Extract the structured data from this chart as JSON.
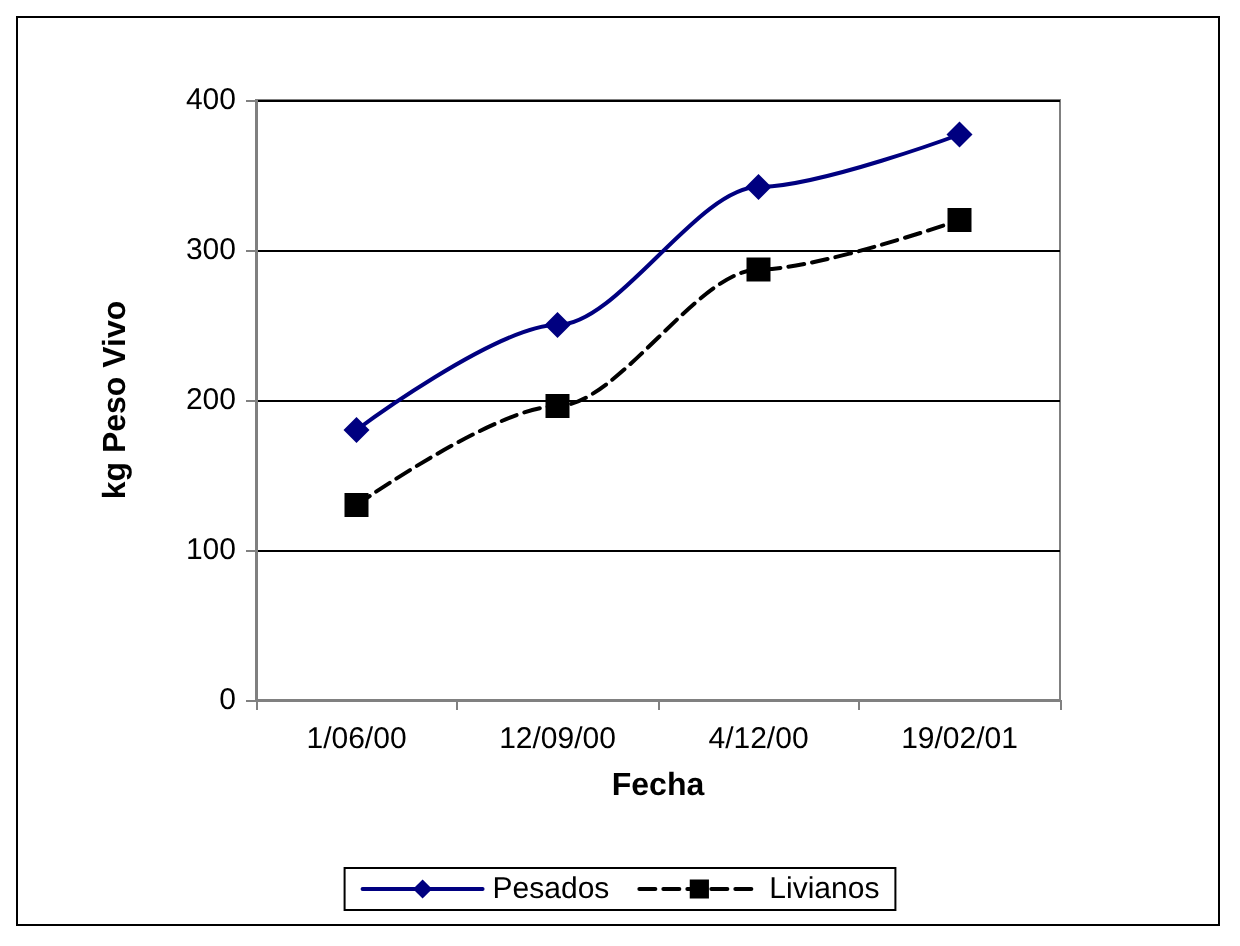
{
  "chart_data": {
    "type": "line",
    "xlabel": "Fecha",
    "ylabel": "kg Peso Vivo",
    "categories": [
      "1/06/00",
      "12/09/00",
      "4/12/00",
      "19/02/01"
    ],
    "series": [
      {
        "name": "Pesados",
        "color": "#000080",
        "values": [
          180,
          250,
          342,
          377
        ],
        "marker": "diamond",
        "line_style": "solid"
      },
      {
        "name": "Livianos",
        "color": "#000000",
        "values": [
          130,
          196,
          287,
          320
        ],
        "marker": "square",
        "line_style": "dashed"
      }
    ],
    "ylim": [
      0,
      400
    ],
    "yticks": [
      0,
      100,
      200,
      300,
      400
    ],
    "grid": "y",
    "legend": "bottom"
  }
}
